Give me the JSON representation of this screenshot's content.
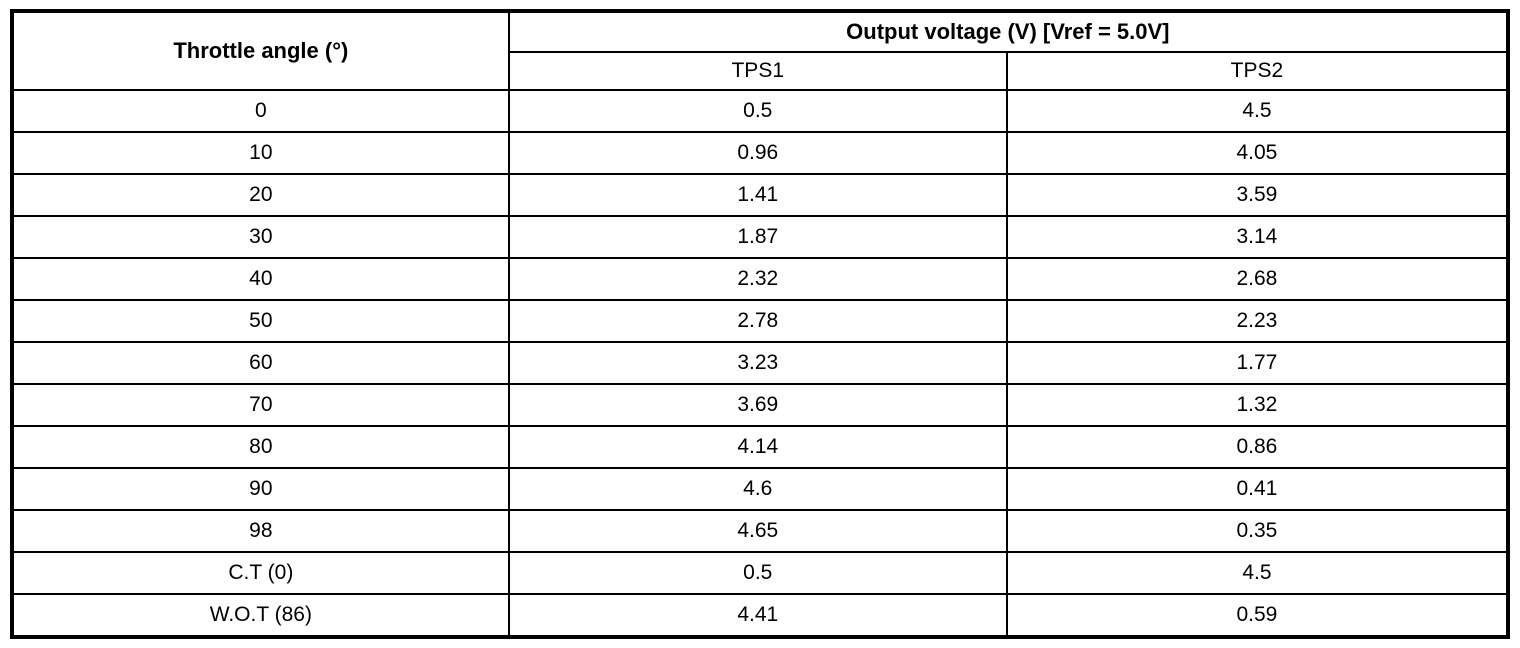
{
  "table": {
    "header": {
      "throttle_angle": "Throttle angle (°)",
      "output_voltage": "Output voltage (V) [Vref = 5.0V]",
      "tps1": "TPS1",
      "tps2": "TPS2"
    },
    "rows": [
      {
        "angle": "0",
        "tps1": "0.5",
        "tps2": "4.5"
      },
      {
        "angle": "10",
        "tps1": "0.96",
        "tps2": "4.05"
      },
      {
        "angle": "20",
        "tps1": "1.41",
        "tps2": "3.59"
      },
      {
        "angle": "30",
        "tps1": "1.87",
        "tps2": "3.14"
      },
      {
        "angle": "40",
        "tps1": "2.32",
        "tps2": "2.68"
      },
      {
        "angle": "50",
        "tps1": "2.78",
        "tps2": "2.23"
      },
      {
        "angle": "60",
        "tps1": "3.23",
        "tps2": "1.77"
      },
      {
        "angle": "70",
        "tps1": "3.69",
        "tps2": "1.32"
      },
      {
        "angle": "80",
        "tps1": "4.14",
        "tps2": "0.86"
      },
      {
        "angle": "90",
        "tps1": "4.6",
        "tps2": "0.41"
      },
      {
        "angle": "98",
        "tps1": "4.65",
        "tps2": "0.35"
      },
      {
        "angle": "C.T (0)",
        "tps1": "0.5",
        "tps2": "4.5"
      },
      {
        "angle": "W.O.T (86)",
        "tps1": "4.41",
        "tps2": "0.59"
      }
    ]
  },
  "colors": {
    "border": "#000000",
    "background": "#ffffff",
    "text": "#000000"
  }
}
